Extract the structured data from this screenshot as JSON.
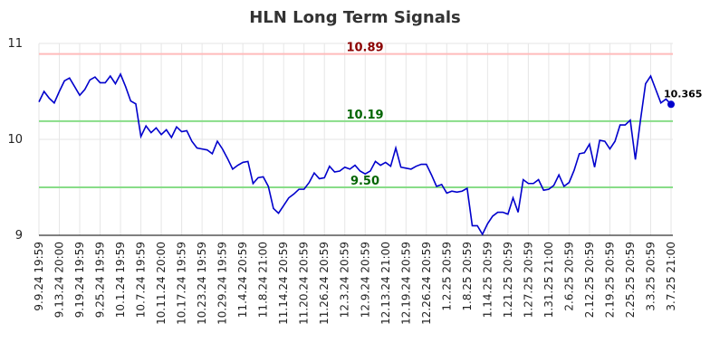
{
  "chart_data": {
    "type": "line",
    "title": "HLN Long Term Signals",
    "categories": [
      "9.9.24 19:59",
      null,
      null,
      null,
      "9.13.24 20:00",
      null,
      null,
      null,
      "9.19.24 19:59",
      null,
      null,
      null,
      "9.25.24 19:59",
      null,
      null,
      null,
      "10.1.24 19:59",
      null,
      null,
      null,
      "10.7.24 19:59",
      null,
      null,
      null,
      "10.11.24 20:00",
      null,
      null,
      null,
      "10.17.24 19:59",
      null,
      null,
      null,
      "10.23.24 19:59",
      null,
      null,
      null,
      "10.29.24 19:59",
      null,
      null,
      null,
      "11.4.24 20:59",
      null,
      null,
      null,
      "11.8.24 21:00",
      null,
      null,
      null,
      "11.14.24 20:59",
      null,
      null,
      null,
      "11.20.24 20:59",
      null,
      null,
      null,
      "11.26.24 20:59",
      null,
      null,
      null,
      "12.3.24 20:59",
      null,
      null,
      null,
      "12.9.24 20:59",
      null,
      null,
      null,
      "12.13.24 21:00",
      null,
      null,
      null,
      "12.19.24 20:59",
      null,
      null,
      null,
      "12.26.24 20:59",
      null,
      null,
      null,
      "1.2.25 20:59",
      null,
      null,
      null,
      "1.8.25 20:59",
      null,
      null,
      null,
      "1.14.25 20:59",
      null,
      null,
      null,
      "1.21.25 20:59",
      null,
      null,
      null,
      "1.27.25 20:59",
      null,
      null,
      null,
      "1.31.25 21:00",
      null,
      null,
      null,
      "2.6.25 20:59",
      null,
      null,
      null,
      "2.12.25 20:59",
      null,
      null,
      null,
      "2.19.25 20:59",
      null,
      null,
      null,
      "2.25.25 20:59",
      null,
      null,
      null,
      "3.3.25 20:59",
      null,
      null,
      null,
      "3.7.25 21:00"
    ],
    "series": [
      {
        "color": "#0000cc",
        "values": [
          10.39,
          10.5,
          10.43,
          10.38,
          10.5,
          10.61,
          10.64,
          10.55,
          10.46,
          10.52,
          10.62,
          10.65,
          10.59,
          10.59,
          10.66,
          10.58,
          10.68,
          10.55,
          10.4,
          10.37,
          10.03,
          10.14,
          10.07,
          10.12,
          10.05,
          10.1,
          10.02,
          10.13,
          10.08,
          10.09,
          9.98,
          9.91,
          9.9,
          9.89,
          9.85,
          9.98,
          9.9,
          9.8,
          9.69,
          9.73,
          9.76,
          9.77,
          9.54,
          9.6,
          9.61,
          9.51,
          9.28,
          9.23,
          9.31,
          9.39,
          9.43,
          9.48,
          9.48,
          9.55,
          9.65,
          9.59,
          9.6,
          9.72,
          9.66,
          9.67,
          9.71,
          9.69,
          9.73,
          9.67,
          9.64,
          9.67,
          9.77,
          9.73,
          9.76,
          9.72,
          9.91,
          9.71,
          9.7,
          9.69,
          9.72,
          9.74,
          9.74,
          9.63,
          9.51,
          9.53,
          9.44,
          9.46,
          9.45,
          9.46,
          9.49,
          9.1,
          9.1,
          9.01,
          9.12,
          9.2,
          9.24,
          9.24,
          9.22,
          9.39,
          9.24,
          9.58,
          9.54,
          9.54,
          9.58,
          9.47,
          9.48,
          9.52,
          9.63,
          9.51,
          9.55,
          9.68,
          9.85,
          9.86,
          9.95,
          9.71,
          9.99,
          9.98,
          9.9,
          9.98,
          10.15,
          10.15,
          10.2,
          9.79,
          10.2,
          10.58,
          10.66,
          10.52,
          10.38,
          10.42,
          10.365
        ],
        "end_label": "10.365"
      }
    ],
    "reference_lines": [
      {
        "value": 10.89,
        "label": "10.89",
        "color": "#ffbbbb",
        "label_color": "#8b0000"
      },
      {
        "value": 10.19,
        "label": "10.19",
        "color": "#88dd88",
        "label_color": "#006400"
      },
      {
        "value": 9.5,
        "label": "9.50",
        "color": "#88dd88",
        "label_color": "#006400"
      }
    ],
    "ylim": [
      9,
      11
    ],
    "yticks": [
      9,
      10,
      11
    ],
    "grid": true
  }
}
